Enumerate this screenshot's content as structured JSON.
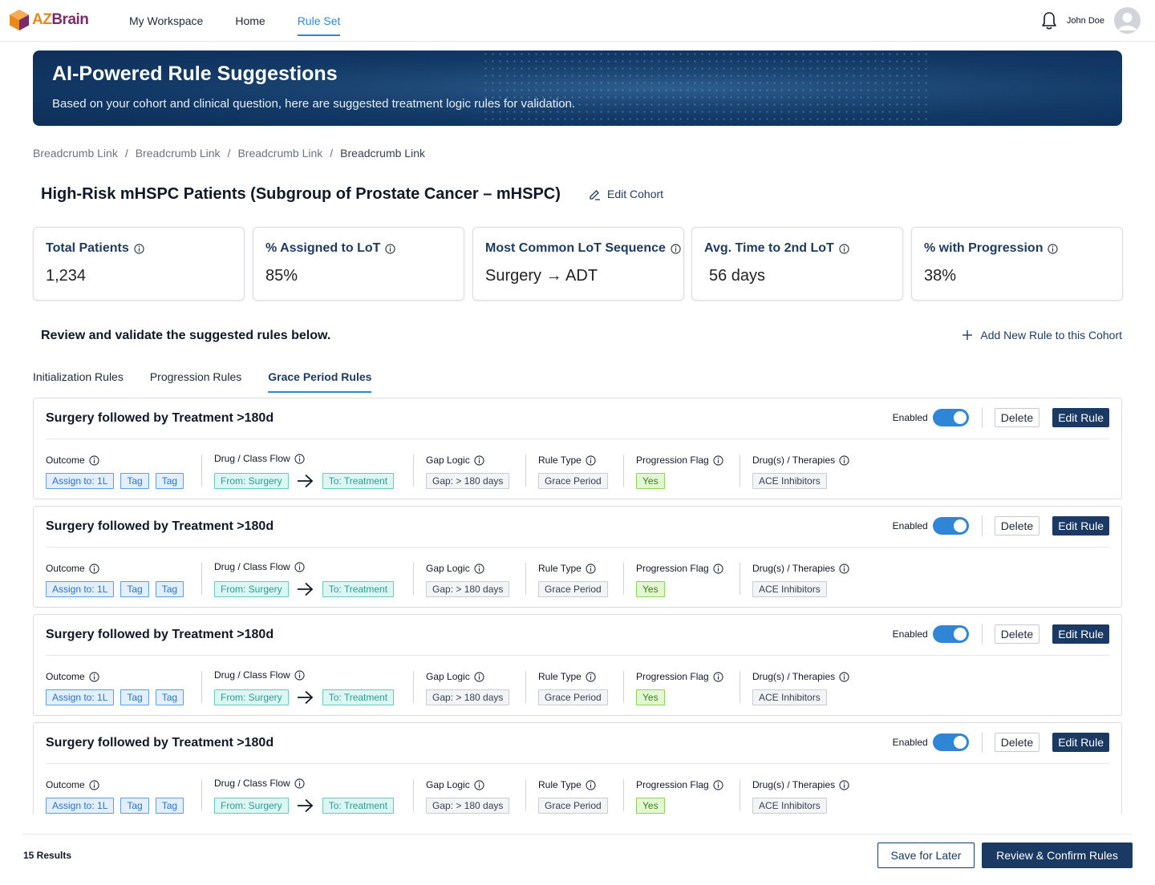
{
  "app": {
    "logo_az": "AZ",
    "logo_brain": "Brain"
  },
  "nav": {
    "links": [
      {
        "label": "My Workspace",
        "active": false
      },
      {
        "label": "Home",
        "active": false
      },
      {
        "label": "Rule Set",
        "active": true
      }
    ],
    "user_name": "John Doe",
    "icons": [
      "bell-icon",
      "avatar"
    ]
  },
  "banner": {
    "title": "AI-Powered Rule Suggestions",
    "subtitle": "Based on your cohort and clinical question, here are suggested treatment logic rules for validation."
  },
  "breadcrumb": [
    "Breadcrumb Link",
    "Breadcrumb Link",
    "Breadcrumb Link",
    "Breadcrumb Link"
  ],
  "cohort": {
    "title": "High-Risk mHSPC Patients (Subgroup of Prostate Cancer – mHSPC)",
    "edit_label": "Edit Cohort"
  },
  "stats": [
    {
      "label": "Total Patients",
      "value": "1,234"
    },
    {
      "label": "% Assigned to LoT",
      "value": "85%"
    },
    {
      "label": "Most Common LoT Sequence",
      "value": "Surgery → ADT"
    },
    {
      "label": "Avg. Time to 2nd LoT",
      "value": "56 days"
    },
    {
      "label": "% with Progression",
      "value": "38%"
    }
  ],
  "review": {
    "text": "Review and validate the suggested rules below.",
    "add_rule": "Add New Rule to this Cohort"
  },
  "tabs": [
    {
      "label": "Initialization Rules",
      "active": false
    },
    {
      "label": "Progression Rules",
      "active": false
    },
    {
      "label": "Grace Period Rules",
      "active": true
    }
  ],
  "rule_labels": {
    "enabled": "Enabled",
    "delete": "Delete",
    "edit": "Edit Rule",
    "outcome": "Outcome",
    "flow": "Drug / Class Flow",
    "gap": "Gap Logic",
    "type": "Rule Type",
    "progression": "Progression Flag",
    "drugs": "Drug(s) / Therapies"
  },
  "rules": [
    {
      "title": "Surgery followed by Treatment >180d",
      "enabled": true,
      "outcome": [
        "Assign to: 1L",
        "Tag",
        "Tag"
      ],
      "flow_from": "From: Surgery",
      "flow_to": "To: Treatment",
      "gap": "Gap: > 180 days",
      "type": "Grace Period",
      "progression": "Yes",
      "drugs": "ACE Inhibitors"
    },
    {
      "title": "Surgery followed by Treatment >180d",
      "enabled": true,
      "outcome": [
        "Assign to: 1L",
        "Tag",
        "Tag"
      ],
      "flow_from": "From: Surgery",
      "flow_to": "To: Treatment",
      "gap": "Gap: > 180 days",
      "type": "Grace Period",
      "progression": "Yes",
      "drugs": "ACE Inhibitors"
    },
    {
      "title": "Surgery followed by Treatment >180d",
      "enabled": true,
      "outcome": [
        "Assign to: 1L",
        "Tag",
        "Tag"
      ],
      "flow_from": "From: Surgery",
      "flow_to": "To: Treatment",
      "gap": "Gap: > 180 days",
      "type": "Grace Period",
      "progression": "Yes",
      "drugs": "ACE Inhibitors"
    },
    {
      "title": "Surgery followed by Treatment >180d",
      "enabled": true,
      "outcome": [
        "Assign to: 1L",
        "Tag",
        "Tag"
      ],
      "flow_from": "From: Surgery",
      "flow_to": "To: Treatment",
      "gap": "Gap: > 180 days",
      "type": "Grace Period",
      "progression": "Yes",
      "drugs": "ACE Inhibitors"
    }
  ],
  "footer": {
    "results": "15 Results",
    "save_later": "Save for Later",
    "confirm": "Review & Confirm Rules"
  },
  "colors": {
    "accent": "#2f86d6",
    "primary_dark": "#1a3a64",
    "banner": "#123865"
  }
}
